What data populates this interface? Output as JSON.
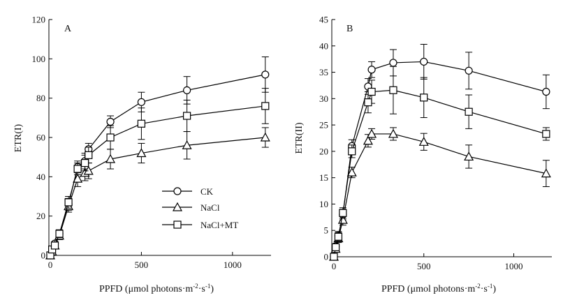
{
  "chart_data": [
    {
      "type": "line",
      "panel_label": "A",
      "xlabel": "PPFD",
      "ylabel": "ETR(I)",
      "xlim": [
        0,
        1200
      ],
      "ylim": [
        0,
        120
      ],
      "xticks": [
        0,
        500,
        1000
      ],
      "yticks": [
        0,
        20,
        40,
        60,
        80,
        100,
        120
      ],
      "grid": false,
      "legend": "bottom-right",
      "x": [
        0,
        10,
        25,
        50,
        100,
        150,
        190,
        210,
        330,
        500,
        750,
        1180
      ],
      "series": [
        {
          "name": "CK",
          "marker": "circle",
          "values": [
            0,
            3,
            6,
            11,
            26,
            45,
            48,
            54,
            68,
            78,
            84,
            92
          ],
          "errors": [
            1,
            1,
            1,
            2,
            3,
            3,
            4,
            3,
            3,
            5,
            7,
            9
          ]
        },
        {
          "name": "NaCl",
          "marker": "triangle",
          "values": [
            0,
            2,
            5,
            10,
            25,
            39,
            42,
            43,
            49,
            52,
            56,
            60
          ],
          "errors": [
            1,
            1,
            1,
            2,
            3,
            4,
            4,
            4,
            5,
            5,
            7,
            5
          ]
        },
        {
          "name": "NaCl+MT",
          "marker": "square",
          "values": [
            0,
            3,
            5,
            11,
            27,
            44,
            47,
            51,
            60,
            67,
            71,
            76
          ],
          "errors": [
            1,
            1,
            1,
            2,
            3,
            3,
            4,
            4,
            6,
            8,
            8,
            9
          ]
        }
      ]
    },
    {
      "type": "line",
      "panel_label": "B",
      "xlabel": "PPFD",
      "ylabel": "ETR(II)",
      "xlim": [
        0,
        1200
      ],
      "ylim": [
        0,
        45
      ],
      "xticks": [
        0,
        500,
        1000
      ],
      "yticks": [
        0,
        5,
        10,
        15,
        20,
        25,
        30,
        35,
        40,
        45
      ],
      "grid": false,
      "x": [
        0,
        10,
        25,
        50,
        100,
        190,
        210,
        330,
        500,
        750,
        1180
      ],
      "series": [
        {
          "name": "CK",
          "marker": "circle",
          "values": [
            0,
            2,
            4,
            8,
            21,
            32.3,
            35.5,
            36.8,
            37,
            35.3,
            31.3
          ],
          "errors": [
            0.5,
            0.6,
            0.8,
            1.0,
            1.2,
            1.5,
            1.5,
            2.5,
            3.3,
            3.5,
            3.2
          ]
        },
        {
          "name": "NaCl",
          "marker": "triangle",
          "values": [
            0,
            1.5,
            3.5,
            7,
            16,
            22,
            23.3,
            23.3,
            21.8,
            19,
            15.8
          ],
          "errors": [
            0.5,
            0.6,
            0.8,
            1.0,
            1.0,
            1.2,
            1.0,
            1.2,
            1.6,
            2.2,
            2.5
          ]
        },
        {
          "name": "NaCl+MT",
          "marker": "square",
          "values": [
            0,
            1.8,
            3.8,
            8.3,
            20,
            29.3,
            31.3,
            31.6,
            30.2,
            27.5,
            23.3
          ],
          "errors": [
            0.5,
            0.6,
            0.8,
            1.0,
            1.2,
            2.0,
            2.2,
            4.5,
            3.8,
            3.2,
            1.2
          ]
        }
      ]
    }
  ],
  "panels": [
    {
      "letter": "A",
      "ylabel": "ETR(I)",
      "xlabel_main": "PPFD (μmol photons·m",
      "xlabel_sup1": "-2",
      "xlabel_mid": "·s",
      "xlabel_sup2": "-1",
      "xlabel_end": ")"
    },
    {
      "letter": "B",
      "ylabel": "ETR(II)",
      "xlabel_main": "PPFD (μmol photons·m",
      "xlabel_sup1": "-2",
      "xlabel_mid": "·s",
      "xlabel_sup2": "-1",
      "xlabel_end": ")"
    }
  ],
  "legend": {
    "items": [
      "CK",
      "NaCl",
      "NaCl+MT"
    ]
  }
}
